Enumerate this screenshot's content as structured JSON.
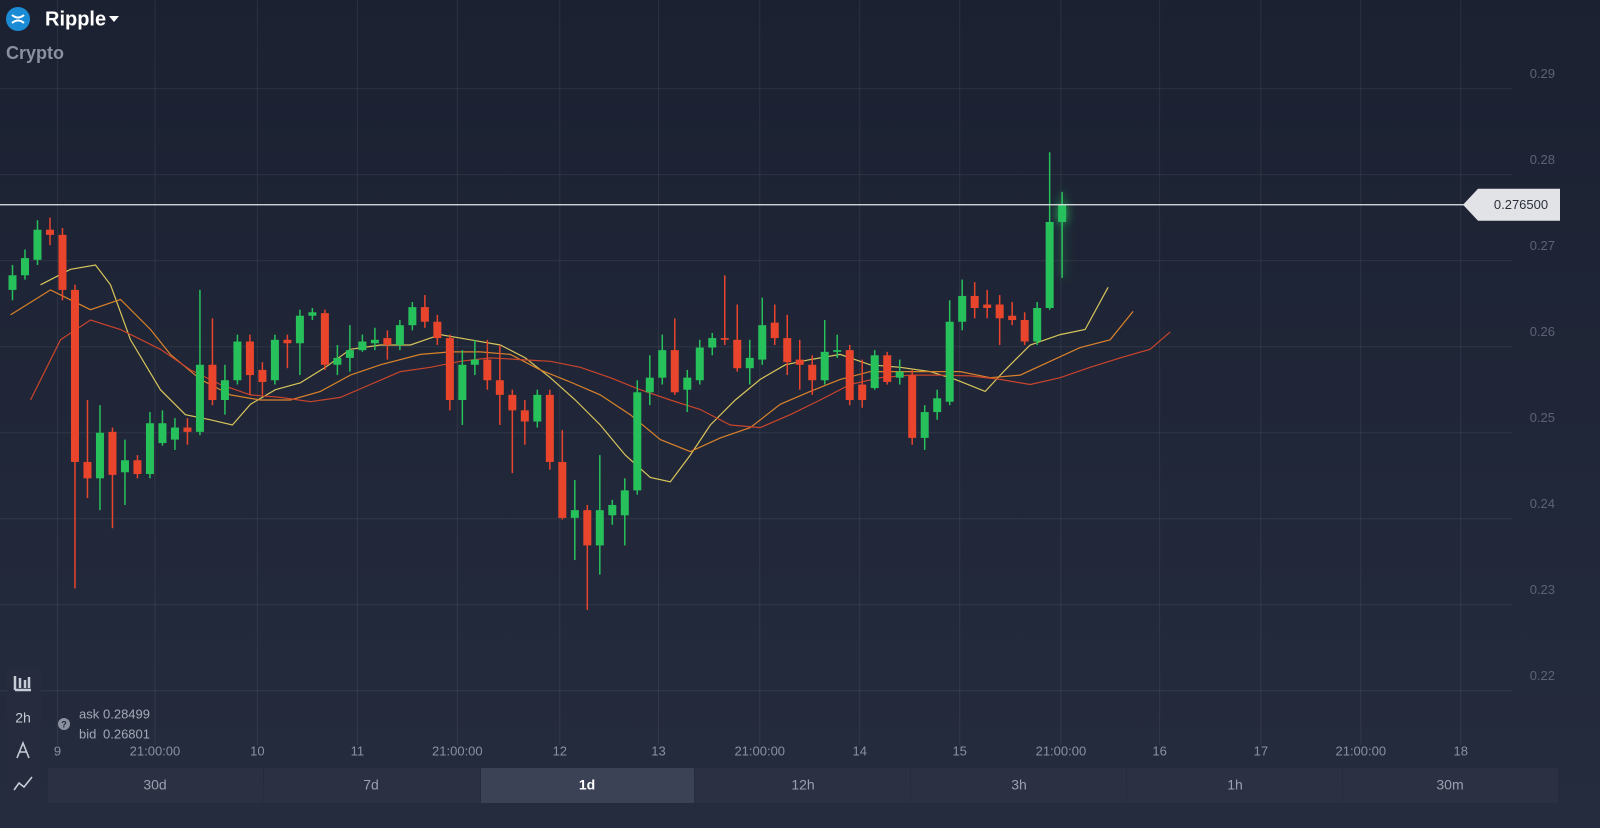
{
  "header": {
    "title": "Ripple",
    "subtitle": "Crypto"
  },
  "quote": {
    "ask_label": "ask",
    "ask": 0.28499,
    "bid_label": "bid",
    "bid": 0.26801
  },
  "toolbar": {
    "interval": "2h"
  },
  "timeframes": [
    "30d",
    "7d",
    "1d",
    "12h",
    "3h",
    "1h",
    "30m"
  ],
  "chart_data": {
    "type": "candlestick",
    "up_color": "#27c15b",
    "down_color": "#e8452c",
    "xlim": [
      -1,
      120
    ],
    "xticks": [
      {
        "value": 3.6,
        "label": "9"
      },
      {
        "value": 11.4,
        "label": "21:00:00"
      },
      {
        "value": 19.6,
        "label": "10"
      },
      {
        "value": 27.6,
        "label": "11"
      },
      {
        "value": 35.6,
        "label": "21:00:00"
      },
      {
        "value": 43.8,
        "label": "12"
      },
      {
        "value": 51.7,
        "label": "13"
      },
      {
        "value": 59.8,
        "label": "21:00:00"
      },
      {
        "value": 67.8,
        "label": "14"
      },
      {
        "value": 75.8,
        "label": "15"
      },
      {
        "value": 83.9,
        "label": "21:00:00"
      },
      {
        "value": 91.8,
        "label": "16"
      },
      {
        "value": 99.9,
        "label": "17"
      },
      {
        "value": 107.9,
        "label": "21:00:00"
      },
      {
        "value": 115.9,
        "label": "18"
      }
    ],
    "ylim": [
      0.2137,
      0.3003
    ],
    "yticks": [
      0.22,
      0.23,
      0.24,
      0.25,
      0.26,
      0.27,
      0.28,
      0.29
    ],
    "grid": true,
    "last_price": {
      "value": 0.2765,
      "label": "0.276500"
    },
    "x": [
      0,
      1,
      2,
      3,
      4,
      5,
      6,
      7,
      8,
      9,
      10,
      11,
      12,
      13,
      14,
      15,
      16,
      17,
      18,
      19,
      20,
      21,
      22,
      23,
      24,
      25,
      26,
      27,
      28,
      29,
      30,
      31,
      32,
      33,
      34,
      35,
      36,
      37,
      38,
      39,
      40,
      41,
      42,
      43,
      44,
      45,
      46,
      47,
      48,
      49,
      50,
      51,
      52,
      53,
      54,
      55,
      56,
      57,
      58,
      59,
      60,
      61,
      62,
      63,
      64,
      65,
      66,
      67,
      68,
      69,
      70,
      71,
      72,
      73,
      74,
      75,
      76,
      77,
      78,
      79,
      80,
      81,
      82,
      83,
      84
    ],
    "open": [
      0.2666,
      0.2683,
      0.2701,
      0.2736,
      0.273,
      0.2666,
      0.2466,
      0.2447,
      0.2501,
      0.2454,
      0.2468,
      0.2452,
      0.2488,
      0.2492,
      0.2506,
      0.2501,
      0.2579,
      0.2538,
      0.2561,
      0.2606,
      0.2573,
      0.2561,
      0.2608,
      0.2604,
      0.2636,
      0.2639,
      0.2579,
      0.2587,
      0.2596,
      0.2604,
      0.261,
      0.2602,
      0.2625,
      0.2646,
      0.2629,
      0.261,
      0.2538,
      0.2579,
      0.2585,
      0.2561,
      0.2544,
      0.2526,
      0.2513,
      0.2544,
      0.2466,
      0.2401,
      0.241,
      0.2369,
      0.2404,
      0.2404,
      0.2433,
      0.2547,
      0.2564,
      0.2596,
      0.255,
      0.2561,
      0.2599,
      0.261,
      0.2608,
      0.2575,
      0.2585,
      0.2628,
      0.261,
      0.2585,
      0.2579,
      0.2561,
      0.2594,
      0.2596,
      0.2556,
      0.2552,
      0.259,
      0.2564,
      0.2567,
      0.2494,
      0.2524,
      0.2536,
      0.2629,
      0.2659,
      0.2649,
      0.2649,
      0.2636,
      0.2631,
      0.2606,
      0.2645,
      0.2745
    ],
    "high": [
      0.2695,
      0.2713,
      0.2747,
      0.275,
      0.2738,
      0.2672,
      0.2538,
      0.2532,
      0.2506,
      0.2492,
      0.2474,
      0.2524,
      0.2526,
      0.2517,
      0.2517,
      0.2666,
      0.2633,
      0.2579,
      0.2614,
      0.2614,
      0.2582,
      0.2614,
      0.2614,
      0.2643,
      0.2645,
      0.2643,
      0.2602,
      0.2625,
      0.2614,
      0.2622,
      0.2619,
      0.2631,
      0.2652,
      0.266,
      0.2637,
      0.2614,
      0.2596,
      0.2608,
      0.2608,
      0.2602,
      0.255,
      0.2538,
      0.255,
      0.255,
      0.2503,
      0.2445,
      0.2416,
      0.2474,
      0.2422,
      0.2447,
      0.2561,
      0.259,
      0.2614,
      0.2633,
      0.2573,
      0.2608,
      0.2616,
      0.2683,
      0.2649,
      0.2608,
      0.2657,
      0.2649,
      0.2637,
      0.2608,
      0.259,
      0.2631,
      0.2614,
      0.2602,
      0.2585,
      0.2596,
      0.2594,
      0.2585,
      0.2573,
      0.2532,
      0.255,
      0.2654,
      0.2678,
      0.2675,
      0.2666,
      0.266,
      0.2652,
      0.264,
      0.2652,
      0.2826,
      0.278
    ],
    "low": [
      0.2654,
      0.2678,
      0.2695,
      0.2718,
      0.2654,
      0.2319,
      0.2424,
      0.241,
      0.2389,
      0.2416,
      0.2447,
      0.2447,
      0.2485,
      0.248,
      0.2486,
      0.2497,
      0.2532,
      0.2521,
      0.2556,
      0.2544,
      0.2544,
      0.2556,
      0.2575,
      0.2567,
      0.2631,
      0.2573,
      0.2567,
      0.2571,
      0.2594,
      0.2596,
      0.2585,
      0.2596,
      0.2619,
      0.2622,
      0.2602,
      0.2526,
      0.2509,
      0.2567,
      0.255,
      0.2509,
      0.2453,
      0.2486,
      0.2506,
      0.2457,
      0.2399,
      0.2352,
      0.2294,
      0.2335,
      0.2393,
      0.2369,
      0.2428,
      0.2532,
      0.2556,
      0.2544,
      0.2524,
      0.2556,
      0.259,
      0.2602,
      0.2571,
      0.2556,
      0.2579,
      0.2602,
      0.2567,
      0.255,
      0.2544,
      0.2556,
      0.2587,
      0.2532,
      0.2529,
      0.255,
      0.2556,
      0.2556,
      0.2486,
      0.248,
      0.2515,
      0.2532,
      0.2619,
      0.2633,
      0.2633,
      0.2602,
      0.2625,
      0.2602,
      0.2602,
      0.2643,
      0.268
    ],
    "close": [
      0.2683,
      0.2703,
      0.2736,
      0.273,
      0.2666,
      0.2466,
      0.2447,
      0.25,
      0.2451,
      0.2468,
      0.2452,
      0.2511,
      0.2511,
      0.2506,
      0.2501,
      0.2579,
      0.2538,
      0.2561,
      0.2606,
      0.2567,
      0.2559,
      0.2608,
      0.2604,
      0.2636,
      0.264,
      0.2579,
      0.2587,
      0.2596,
      0.2606,
      0.2608,
      0.2602,
      0.2625,
      0.2646,
      0.2629,
      0.261,
      0.2538,
      0.2579,
      0.2585,
      0.2561,
      0.2544,
      0.2526,
      0.2513,
      0.2544,
      0.2466,
      0.2401,
      0.241,
      0.2369,
      0.241,
      0.2416,
      0.2433,
      0.2547,
      0.2564,
      0.2596,
      0.2547,
      0.2564,
      0.2599,
      0.261,
      0.2608,
      0.2575,
      0.2587,
      0.2625,
      0.261,
      0.2582,
      0.2579,
      0.2561,
      0.2594,
      0.2596,
      0.2538,
      0.2538,
      0.259,
      0.2559,
      0.2571,
      0.2494,
      0.2524,
      0.254,
      0.2629,
      0.2659,
      0.2645,
      0.2645,
      0.2633,
      0.2631,
      0.2606,
      0.2645,
      0.2745,
      0.2765
    ],
    "series": [
      {
        "type": "line",
        "color": "#d8c55c",
        "x": [
          2.24,
          4.64,
          6.64,
          7.84,
          9.44,
          11.84,
          13.84,
          15.84,
          17.6,
          19.04,
          21.04,
          23.04,
          25.04,
          27.04,
          29.44,
          31.84,
          34.24,
          36.64,
          39.04,
          41.04,
          43.04,
          45.04,
          47.04,
          49.04,
          51.04,
          52.64,
          54.24,
          55.84,
          57.84,
          59.84,
          61.84,
          63.84,
          66.24,
          68.64,
          71.04,
          73.44,
          75.44,
          77.84,
          79.44,
          81.44,
          83.84,
          85.84,
          87.68
        ],
        "values": [
          0.2672,
          0.269,
          0.2695,
          0.2672,
          0.2608,
          0.255,
          0.2521,
          0.2515,
          0.2509,
          0.2533,
          0.255,
          0.2558,
          0.2576,
          0.2597,
          0.2602,
          0.2602,
          0.2614,
          0.2608,
          0.2602,
          0.2587,
          0.2564,
          0.2538,
          0.2509,
          0.2474,
          0.2448,
          0.2443,
          0.2474,
          0.2509,
          0.2538,
          0.2562,
          0.2579,
          0.2585,
          0.2591,
          0.2579,
          0.2576,
          0.2571,
          0.2562,
          0.2548,
          0.2573,
          0.2602,
          0.2614,
          0.262,
          0.2669
        ]
      },
      {
        "type": "line",
        "color": "#d9822b",
        "x": [
          -0.16,
          3.04,
          6.24,
          8.64,
          11.04,
          12.64,
          15.04,
          17.44,
          19.84,
          22.24,
          24.64,
          27.04,
          29.44,
          32.64,
          35.04,
          37.44,
          39.84,
          42.24,
          44.64,
          47.04,
          49.44,
          51.84,
          54.24,
          56.64,
          59.04,
          61.44,
          63.84,
          66.24,
          68.64,
          71.04,
          73.44,
          75.84,
          78.24,
          80.64,
          83.04,
          85.44,
          87.84,
          89.68
        ],
        "values": [
          0.2637,
          0.2666,
          0.2643,
          0.2655,
          0.262,
          0.2591,
          0.2562,
          0.2544,
          0.2538,
          0.2538,
          0.2548,
          0.2567,
          0.2579,
          0.2591,
          0.2594,
          0.2594,
          0.2591,
          0.2573,
          0.2559,
          0.2544,
          0.2521,
          0.2492,
          0.2478,
          0.2494,
          0.2506,
          0.2533,
          0.2548,
          0.2562,
          0.2571,
          0.2571,
          0.2571,
          0.2571,
          0.2564,
          0.2567,
          0.2583,
          0.2599,
          0.2608,
          0.2641
        ]
      },
      {
        "type": "line",
        "color": "#c9442c",
        "x": [
          1.44,
          3.84,
          6.24,
          8.64,
          11.84,
          14.24,
          16.64,
          19.04,
          21.44,
          23.84,
          26.24,
          28.64,
          31.04,
          33.44,
          35.84,
          38.24,
          40.64,
          43.04,
          45.44,
          47.84,
          50.24,
          52.64,
          55.04,
          57.44,
          59.84,
          62.24,
          64.64,
          67.04,
          69.44,
          71.84,
          74.24,
          76.64,
          79.04,
          81.44,
          83.84,
          86.24,
          88.64,
          91.04,
          92.64
        ],
        "values": [
          0.2538,
          0.2608,
          0.2631,
          0.262,
          0.2597,
          0.2573,
          0.2556,
          0.2544,
          0.2541,
          0.2536,
          0.2541,
          0.2556,
          0.2571,
          0.2576,
          0.2583,
          0.2587,
          0.2585,
          0.2583,
          0.2576,
          0.2564,
          0.255,
          0.2538,
          0.2527,
          0.2509,
          0.2506,
          0.2521,
          0.2538,
          0.2556,
          0.2564,
          0.2567,
          0.2567,
          0.2566,
          0.2562,
          0.2556,
          0.2564,
          0.2576,
          0.2587,
          0.2597,
          0.2617
        ]
      }
    ]
  }
}
